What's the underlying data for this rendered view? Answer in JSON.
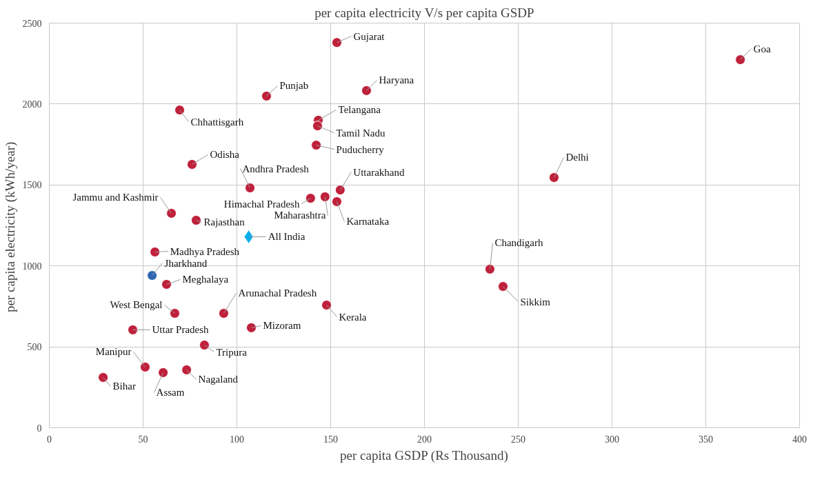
{
  "chart_data": {
    "type": "scatter",
    "title": "per capita electricity V/s per capita GSDP",
    "xlabel": "per capita GSDP (Rs Thousand)",
    "ylabel": "per capita electricity  (kWh/year)",
    "xlim": [
      0,
      400
    ],
    "xticks": [
      0,
      50,
      100,
      150,
      200,
      250,
      300,
      350,
      400
    ],
    "ylim": [
      0,
      2500
    ],
    "yticks": [
      0,
      500,
      1000,
      1500,
      2000,
      2500
    ],
    "grid": true,
    "legend": false,
    "marker": "circle",
    "series": [
      {
        "name": "Gujarat",
        "color": "#c0203a",
        "x": [
          153.3
        ],
        "values": [
          2380
        ]
      },
      {
        "name": "Goa",
        "color": "#c0203a",
        "x": [
          368.4
        ],
        "values": [
          2274
        ]
      },
      {
        "name": "Haryana",
        "color": "#c0203a",
        "x": [
          169.1
        ],
        "values": [
          2083
        ]
      },
      {
        "name": "Punjab",
        "color": "#c0203a",
        "x": [
          115.8
        ],
        "values": [
          2049
        ]
      },
      {
        "name": "Chhattisgarh",
        "color": "#c0203a",
        "x": [
          69.5
        ],
        "values": [
          1963
        ]
      },
      {
        "name": "Telangana",
        "color": "#c0203a",
        "x": [
          143.4
        ],
        "values": [
          1900
        ]
      },
      {
        "name": "Tamil Nadu",
        "color": "#c0203a",
        "x": [
          143
        ],
        "values": [
          1865
        ]
      },
      {
        "name": "Puducherry",
        "color": "#c0203a",
        "x": [
          142.3
        ],
        "values": [
          1746
        ]
      },
      {
        "name": "Odisha",
        "color": "#c0203a",
        "x": [
          76.1
        ],
        "values": [
          1627
        ]
      },
      {
        "name": "Delhi",
        "color": "#c0203a",
        "x": [
          269.1
        ],
        "values": [
          1546
        ]
      },
      {
        "name": "Andhra Pradesh",
        "color": "#c0203a",
        "x": [
          107
        ],
        "values": [
          1482
        ]
      },
      {
        "name": "Uttarakhand",
        "color": "#c0203a",
        "x": [
          155.1
        ],
        "values": [
          1469
        ]
      },
      {
        "name": "Himachal Pradesh",
        "color": "#c0203a",
        "x": [
          139.3
        ],
        "values": [
          1418
        ]
      },
      {
        "name": "Maharashtra",
        "color": "#c0203a",
        "x": [
          147
        ],
        "values": [
          1427
        ]
      },
      {
        "name": "Karnataka",
        "color": "#c0203a",
        "x": [
          153.3
        ],
        "values": [
          1397
        ]
      },
      {
        "name": "Jammu and Kashmir",
        "color": "#c0203a",
        "x": [
          65.1
        ],
        "values": [
          1325
        ]
      },
      {
        "name": "Rajasthan",
        "color": "#c0203a",
        "x": [
          78.3
        ],
        "values": [
          1282
        ]
      },
      {
        "name": "All India",
        "color": "#00aeef",
        "marker": "diamond",
        "x": [
          106.3
        ],
        "values": [
          1180
        ]
      },
      {
        "name": "Madhya Pradesh",
        "color": "#c0203a",
        "x": [
          56.3
        ],
        "values": [
          1086
        ]
      },
      {
        "name": "Chandigarh",
        "color": "#c0203a",
        "x": [
          234.9
        ],
        "values": [
          980
        ]
      },
      {
        "name": "Jharkhand",
        "color": "#2e67b1",
        "x": [
          54.8
        ],
        "values": [
          941
        ]
      },
      {
        "name": "Meghalaya",
        "color": "#c0203a",
        "x": [
          62.5
        ],
        "values": [
          886
        ]
      },
      {
        "name": "Sikkim",
        "color": "#c0203a",
        "x": [
          241.9
        ],
        "values": [
          873
        ]
      },
      {
        "name": "Kerala",
        "color": "#c0203a",
        "x": [
          147.8
        ],
        "values": [
          758
        ]
      },
      {
        "name": "West Bengal",
        "color": "#c0203a",
        "x": [
          66.9
        ],
        "values": [
          707
        ]
      },
      {
        "name": "Arunachal Pradesh",
        "color": "#c0203a",
        "x": [
          93
        ],
        "values": [
          707
        ]
      },
      {
        "name": "Mizoram",
        "color": "#c0203a",
        "x": [
          107.7
        ],
        "values": [
          618
        ]
      },
      {
        "name": "Uttar Pradesh",
        "color": "#c0203a",
        "x": [
          44.5
        ],
        "values": [
          605
        ]
      },
      {
        "name": "Tripura",
        "color": "#c0203a",
        "x": [
          82.7
        ],
        "values": [
          511
        ]
      },
      {
        "name": "Manipur",
        "color": "#c0203a",
        "x": [
          51.1
        ],
        "values": [
          375
        ]
      },
      {
        "name": "Assam",
        "color": "#c0203a",
        "x": [
          60.7
        ],
        "values": [
          341
        ]
      },
      {
        "name": "Nagaland",
        "color": "#c0203a",
        "x": [
          73.2
        ],
        "values": [
          358
        ]
      },
      {
        "name": "Bihar",
        "color": "#c0203a",
        "x": [
          28.7
        ],
        "values": [
          311
        ]
      }
    ]
  }
}
